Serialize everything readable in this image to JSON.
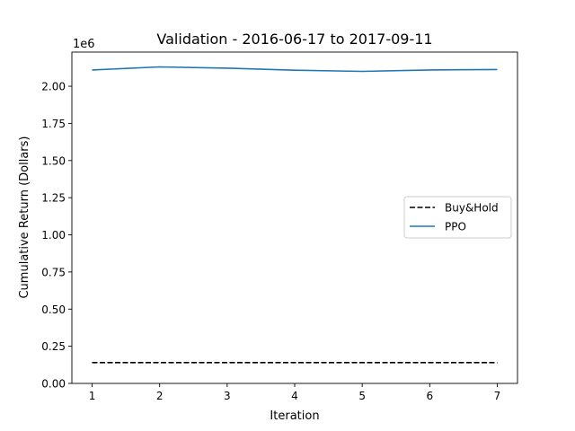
{
  "chart_data": {
    "type": "line",
    "title": "Validation - 2016-06-17 to 2017-09-11",
    "xlabel": "Iteration",
    "ylabel": "Cumulative Return (Dollars)",
    "y_scale_label": "1e6",
    "x": [
      1,
      2,
      3,
      4,
      5,
      6,
      7
    ],
    "xlim": [
      0.7,
      7.3
    ],
    "ylim": [
      0,
      2.23
    ],
    "x_ticks": [
      1,
      2,
      3,
      4,
      5,
      6,
      7
    ],
    "y_ticks": [
      0.0,
      0.25,
      0.5,
      0.75,
      1.0,
      1.25,
      1.5,
      1.75,
      2.0
    ],
    "y_tick_labels": [
      "0.00",
      "0.25",
      "0.50",
      "0.75",
      "1.00",
      "1.25",
      "1.50",
      "1.75",
      "2.00"
    ],
    "grid": false,
    "legend_position": "center-right",
    "series": [
      {
        "name": "Buy&Hold",
        "style": "dashed",
        "color": "#000000",
        "values": [
          0.14,
          0.14,
          0.14,
          0.14,
          0.14,
          0.14,
          0.14
        ]
      },
      {
        "name": "PPO",
        "style": "solid",
        "color": "#1f77b4",
        "values": [
          2.11,
          2.13,
          2.122,
          2.108,
          2.1,
          2.11,
          2.113
        ]
      }
    ]
  }
}
